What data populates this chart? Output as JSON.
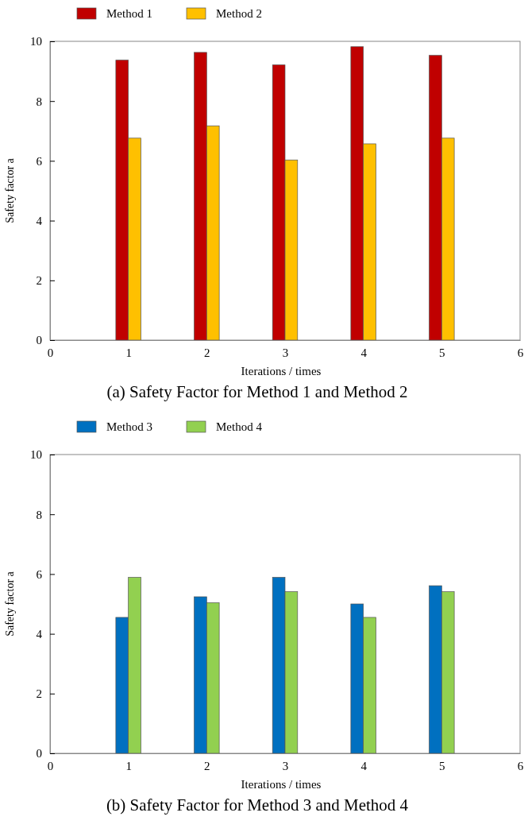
{
  "chart_data": [
    {
      "type": "bar",
      "title": "(a) Safety Factor for Method 1 and Method 2",
      "xlabel": "Iterations / times",
      "ylabel": "Safety factor a",
      "x": [
        1,
        2,
        3,
        4,
        5
      ],
      "xlim": [
        0,
        6
      ],
      "xticks": [
        0,
        1,
        2,
        3,
        4,
        5,
        6
      ],
      "ylim": [
        0,
        10
      ],
      "yticks": [
        0,
        2,
        4,
        6,
        8,
        10
      ],
      "legend": "top",
      "grid": false,
      "series": [
        {
          "name": "Method 1",
          "color": "#c00000",
          "values": [
            9.37,
            9.63,
            9.21,
            9.82,
            9.53
          ]
        },
        {
          "name": "Method 2",
          "color": "#ffc000",
          "values": [
            6.76,
            7.17,
            6.03,
            6.57,
            6.76
          ]
        }
      ]
    },
    {
      "type": "bar",
      "title": "(b) Safety Factor for Method 3 and Method 4",
      "xlabel": "Iterations / times",
      "ylabel": "Safety factor a",
      "x": [
        1,
        2,
        3,
        4,
        5
      ],
      "xlim": [
        0,
        6
      ],
      "xticks": [
        0,
        1,
        2,
        3,
        4,
        5,
        6
      ],
      "ylim": [
        0,
        10
      ],
      "yticks": [
        0,
        2,
        4,
        6,
        8,
        10
      ],
      "legend": "top",
      "grid": false,
      "series": [
        {
          "name": "Method 3",
          "color": "#0070c0",
          "values": [
            4.55,
            5.24,
            5.89,
            5.0,
            5.61
          ]
        },
        {
          "name": "Method 4",
          "color": "#92d050",
          "values": [
            5.89,
            5.04,
            5.41,
            4.55,
            5.41
          ]
        }
      ]
    }
  ]
}
